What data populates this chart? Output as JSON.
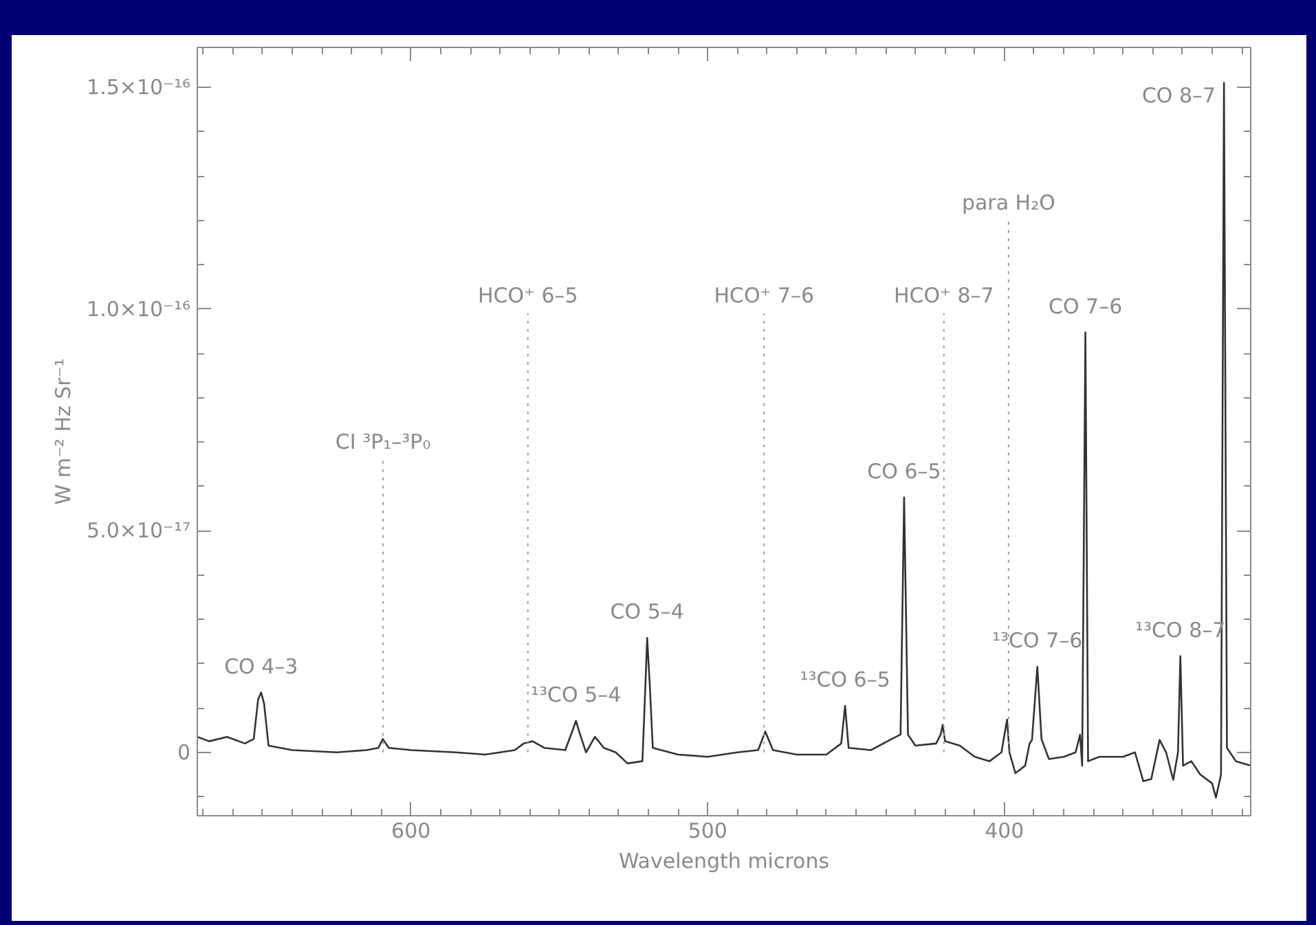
{
  "chart_data": {
    "type": "line",
    "xlabel": "Wavelength microns",
    "ylabel": "W m⁻² Hz Sr⁻¹",
    "xlim": [
      672,
      317
    ],
    "ylim": [
      -1.43e-17,
      1.59e-16
    ],
    "xticks": [
      600,
      500,
      400
    ],
    "yticks": [
      {
        "value": 0,
        "label": "0"
      },
      {
        "value": 5e-17,
        "label": "5.0×10⁻¹⁷"
      },
      {
        "value": 1e-16,
        "label": "1.0×10⁻¹⁶"
      },
      {
        "value": 1.5e-16,
        "label": "1.5×10⁻¹⁶"
      }
    ],
    "grid": false,
    "marker": "none",
    "line_style": "solid",
    "series": [
      {
        "color": "#333333",
        "x": [
          672,
          668,
          662,
          656,
          653,
          651.5,
          650.5,
          649.5,
          648,
          640,
          625,
          615,
          611,
          609.5,
          607.5,
          600,
          585,
          575,
          565,
          562,
          559,
          555,
          548,
          545.5,
          544.4,
          543,
          541,
          538,
          535,
          531,
          527,
          522,
          521,
          520.4,
          519.5,
          518.5,
          510,
          500,
          490,
          483,
          480.6,
          478,
          470,
          460,
          455,
          453.7,
          452.5,
          445,
          438,
          435,
          433.8,
          432.5,
          430,
          423,
          421.5,
          420.8,
          420,
          415,
          410,
          405,
          401,
          399.1,
          398.3,
          396.3,
          393,
          391.5,
          390.7,
          388.9,
          387.5,
          385,
          380,
          376,
          374.5,
          373.8,
          372.7,
          371.8,
          368,
          360,
          356,
          353.2,
          350.5,
          347.7,
          345.5,
          343.1,
          341.5,
          340.7,
          339.8,
          337,
          334,
          330,
          328.7,
          327,
          326,
          325,
          322,
          317
        ],
        "values": [
          3.5e-18,
          2.5e-18,
          3.5e-18,
          2e-18,
          3e-18,
          1.2e-17,
          1.35e-17,
          1.1e-17,
          1.5e-18,
          5e-19,
          0,
          5e-19,
          1e-18,
          3e-18,
          1e-18,
          5e-19,
          0,
          -5e-19,
          5e-19,
          2e-18,
          2.5e-18,
          1e-18,
          5e-19,
          5e-18,
          7.1e-18,
          4e-18,
          0,
          3.5e-18,
          1e-18,
          0,
          -2.5e-18,
          -2e-18,
          1.5e-17,
          2.58e-17,
          1.5e-17,
          1e-18,
          -5e-19,
          -1e-18,
          0,
          5e-19,
          4.7e-18,
          5e-19,
          -5e-19,
          -5e-19,
          2e-18,
          1.05e-17,
          1e-18,
          5e-19,
          3e-18,
          4e-18,
          5.75e-17,
          4e-18,
          1.5e-18,
          2e-18,
          4e-18,
          6.2e-18,
          2.5e-18,
          1.5e-18,
          -1e-18,
          -2e-18,
          0,
          7.4e-18,
          0,
          -4.7e-18,
          -3e-18,
          2e-18,
          2.8e-18,
          1.93e-17,
          3e-18,
          -1.5e-18,
          -1e-18,
          0,
          4e-18,
          -3e-18,
          9.47e-17,
          -2e-18,
          -1e-18,
          -1e-18,
          0,
          -6.5e-18,
          -6e-18,
          2.8e-18,
          0,
          -6.2e-18,
          0,
          2.17e-17,
          -3e-18,
          -2e-18,
          -5e-18,
          -7e-18,
          -1.02e-17,
          -5e-18,
          1.51e-16,
          1e-18,
          -2e-18,
          -3e-18
        ]
      }
    ],
    "ref_lines": [
      {
        "axis": "x",
        "value": 609.4,
        "line_style": "dotted",
        "color": "#999999"
      },
      {
        "axis": "x",
        "value": 560.6,
        "line_style": "dotted",
        "color": "#999999"
      },
      {
        "axis": "x",
        "value": 481,
        "line_style": "dotted",
        "color": "#999999"
      },
      {
        "axis": "x",
        "value": 420.4,
        "line_style": "dotted",
        "color": "#999999"
      },
      {
        "axis": "x",
        "value": 398.6,
        "line_style": "dotted",
        "color": "#999999"
      }
    ],
    "annotations": [
      {
        "text": "CO 4–3",
        "x": 650.5,
        "y": 1.35e-17
      },
      {
        "text": "CI ³P₁–³P₀",
        "x": 609.4,
        "y": 6.6e-17
      },
      {
        "text": "HCO⁺ 6–5",
        "x": 560.6,
        "y": 9.9e-17
      },
      {
        "text": "HCO⁺ 7–6",
        "x": 481,
        "y": 9.9e-17
      },
      {
        "text": "HCO⁺ 8–7",
        "x": 420.4,
        "y": 9.9e-17
      },
      {
        "text": "para H₂O",
        "x": 398.6,
        "y": 1.2e-16
      },
      {
        "text": "CO 5–4",
        "x": 520.4,
        "y": 2.58e-17
      },
      {
        "text": "¹³CO 5–4",
        "x": 544.4,
        "y": 7.1e-18
      },
      {
        "text": "CO 6–5",
        "x": 433.8,
        "y": 5.75e-17
      },
      {
        "text": "¹³CO 6–5",
        "x": 453.7,
        "y": 1.05e-17
      },
      {
        "text": "¹³CO 7–6",
        "x": 388.9,
        "y": 1.93e-17
      },
      {
        "text": "CO 7–6",
        "x": 372.7,
        "y": 9.47e-17
      },
      {
        "text": "¹³CO 8–7",
        "x": 340.7,
        "y": 2.17e-17
      },
      {
        "text": "CO 8–7",
        "x": 326,
        "y": 1.51e-16
      }
    ]
  }
}
